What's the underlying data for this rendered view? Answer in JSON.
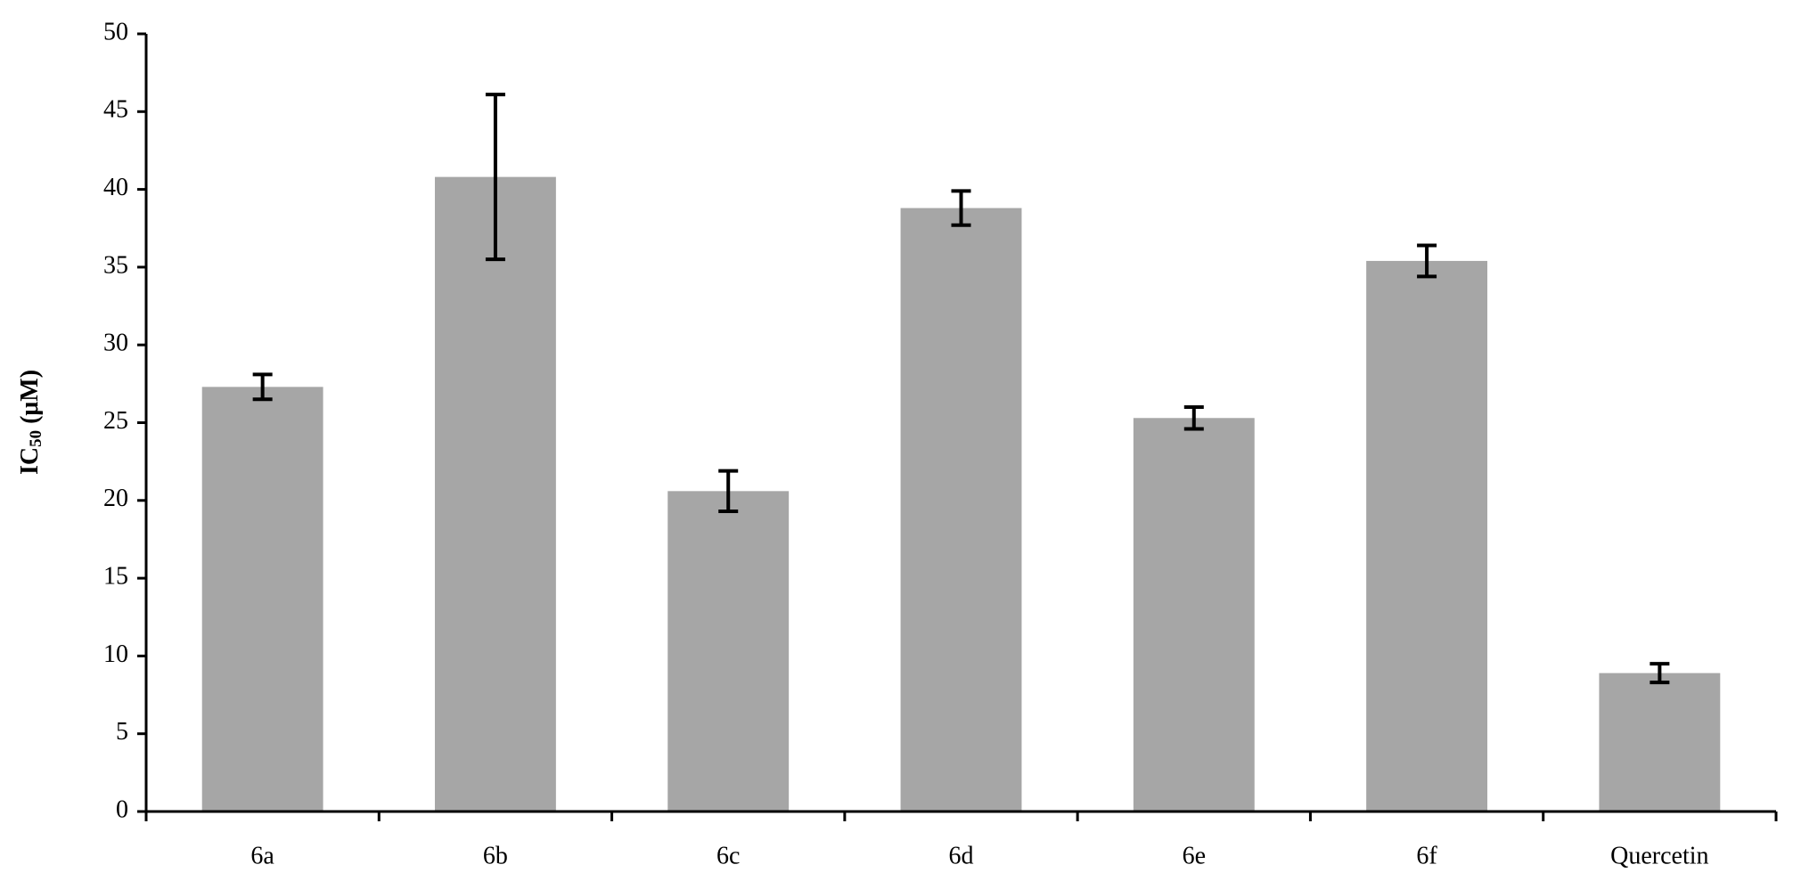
{
  "chart_data": {
    "type": "bar",
    "y_label": {
      "text": "IC",
      "subscript": "50",
      "suffix": "(μM)"
    },
    "categories": [
      "6a",
      "6b",
      "6c",
      "6d",
      "6e",
      "6f",
      "Quercetin"
    ],
    "values": [
      27.3,
      40.8,
      20.6,
      38.8,
      25.3,
      35.4,
      8.9
    ],
    "errors": [
      0.8,
      5.3,
      1.3,
      1.1,
      0.7,
      1.0,
      0.6
    ],
    "color": "#a6a6a6",
    "ylim": [
      0,
      50
    ],
    "yticks": [
      0,
      5,
      10,
      15,
      20,
      25,
      30,
      35,
      40,
      45,
      50
    ],
    "grid": false
  }
}
